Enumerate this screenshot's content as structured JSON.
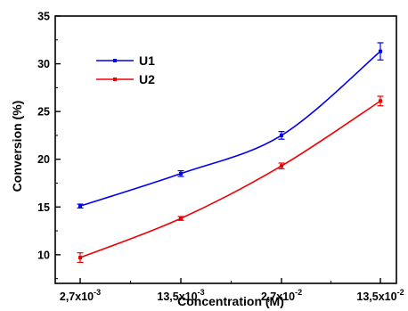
{
  "chart_data": {
    "type": "line",
    "title": "",
    "xlabel": "Concentration (M)",
    "ylabel": "Conversion (%)",
    "categories": [
      {
        "base": "2,7x10",
        "exp": "-3"
      },
      {
        "base": "13,5x10",
        "exp": "-3"
      },
      {
        "base": "2,7x10",
        "exp": "-2"
      },
      {
        "base": "13,5x10",
        "exp": "-2"
      }
    ],
    "ylim": [
      7,
      35
    ],
    "yticks": [
      "10",
      "15",
      "20",
      "25",
      "30",
      "35"
    ],
    "grid": false,
    "legend_position": "top-left",
    "series": [
      {
        "name": "U1",
        "color": "#0000ee",
        "values": [
          15.1,
          18.5,
          22.5,
          31.3
        ],
        "errors": [
          0.2,
          0.3,
          0.4,
          0.9
        ]
      },
      {
        "name": "U2",
        "color": "#ee0000",
        "values": [
          9.7,
          13.8,
          19.3,
          26.1
        ],
        "errors": [
          0.5,
          0.2,
          0.3,
          0.5
        ]
      }
    ]
  }
}
